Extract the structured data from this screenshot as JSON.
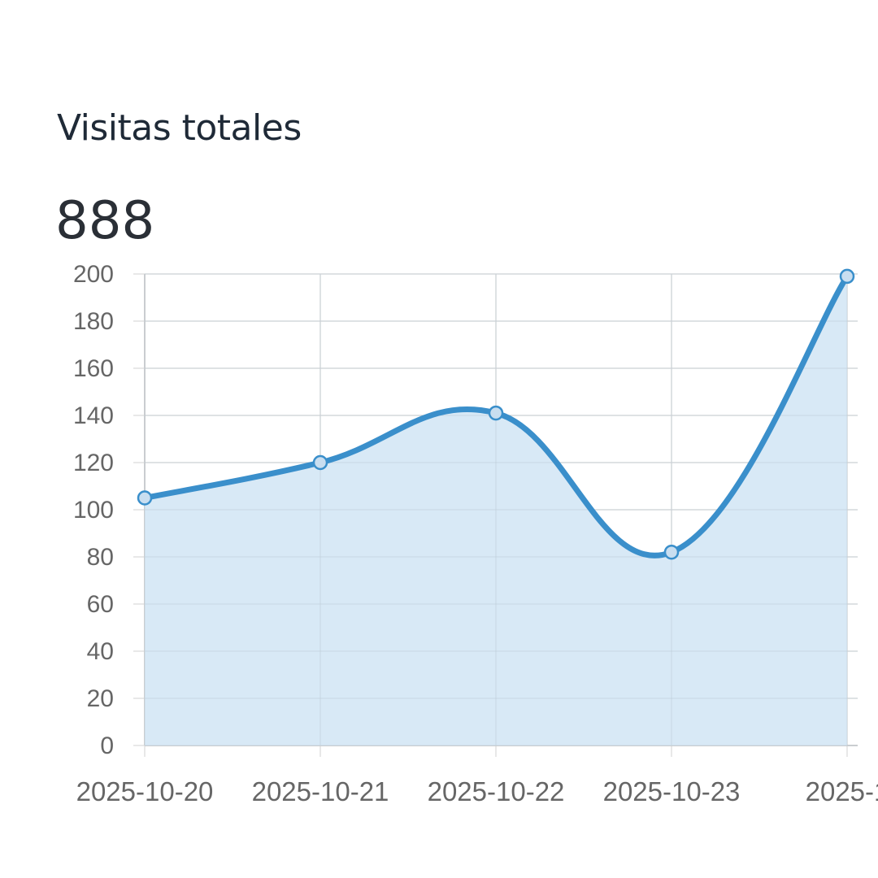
{
  "card": {
    "title": "Visitas totales",
    "value": "888"
  },
  "colors": {
    "line": "#3a8fcb",
    "fill": "#d6e8f5",
    "grid": "#e0e0e0",
    "tick_text": "#666666"
  },
  "chart_data": {
    "type": "area",
    "categories": [
      "2025-10-20",
      "2025-10-21",
      "2025-10-22",
      "2025-10-23",
      "2025-1"
    ],
    "values": [
      105,
      120,
      141,
      82,
      199
    ],
    "ylim": [
      0,
      200
    ],
    "yticks": [
      0,
      20,
      40,
      60,
      80,
      100,
      120,
      140,
      160,
      180,
      200
    ],
    "grid": true,
    "legend": "none"
  }
}
